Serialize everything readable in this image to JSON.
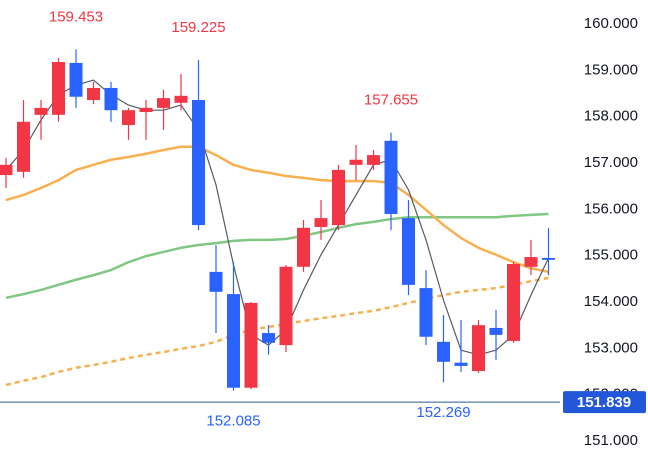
{
  "chart_data": {
    "type": "candlestick",
    "up_color": "#f23645",
    "down_color": "#2962ff",
    "open": [
      156.74,
      156.81,
      158.04,
      158.04,
      159.16,
      158.36,
      158.62,
      157.82,
      158.1,
      158.19,
      158.3,
      158.36,
      154.65,
      154.17,
      152.15,
      153.33,
      153.07,
      154.76,
      155.62,
      155.66,
      156.96,
      156.96,
      157.48,
      155.81,
      154.3,
      153.14,
      152.69,
      152.51,
      153.44,
      153.16,
      154.76,
      154.95
    ],
    "high": [
      157.11,
      158.36,
      158.36,
      159.27,
      159.453,
      158.75,
      158.75,
      158.19,
      158.36,
      158.58,
      158.92,
      159.225,
      155.23,
      154.86,
      154.0,
      153.5,
      154.8,
      155.77,
      156.2,
      156.96,
      157.39,
      157.28,
      157.655,
      156.2,
      154.69,
      153.72,
      153.61,
      153.61,
      153.83,
      154.86,
      155.34,
      155.6
    ],
    "low": [
      156.46,
      156.68,
      157.5,
      157.89,
      158.19,
      158.27,
      157.89,
      157.5,
      157.5,
      157.71,
      158.14,
      155.55,
      153.33,
      152.085,
      152.12,
      152.86,
      152.92,
      154.65,
      155.34,
      155.55,
      156.63,
      156.85,
      155.55,
      154.15,
      153.07,
      152.269,
      152.49,
      152.47,
      152.75,
      153.12,
      154.58,
      154.58
    ],
    "close": [
      156.96,
      157.89,
      158.19,
      159.18,
      158.43,
      158.62,
      158.14,
      158.14,
      158.19,
      158.4,
      158.45,
      155.66,
      154.22,
      152.15,
      153.98,
      153.12,
      154.76,
      155.6,
      155.81,
      156.85,
      157.07,
      157.17,
      155.9,
      154.37,
      153.25,
      152.71,
      152.62,
      153.5,
      153.29,
      154.82,
      154.97,
      154.91
    ],
    "high_labels": [
      4,
      11,
      22
    ],
    "low_labels": [
      13,
      25
    ],
    "high_label_color": "#f23645",
    "low_label_color": "#2962ff",
    "lines": [
      {
        "color": "#f7b04f",
        "dashed": true,
        "width": 2.5,
        "values": [
          152.21,
          152.3,
          152.38,
          152.49,
          152.58,
          152.64,
          152.71,
          152.79,
          152.86,
          152.92,
          152.99,
          153.05,
          153.14,
          153.29,
          153.4,
          153.46,
          153.53,
          153.59,
          153.65,
          153.7,
          153.76,
          153.81,
          153.89,
          153.98,
          154.07,
          154.15,
          154.22,
          154.26,
          154.3,
          154.37,
          154.45,
          154.52
        ]
      },
      {
        "color": "#81c784",
        "dashed": false,
        "width": 2.5,
        "values": [
          154.09,
          154.17,
          154.26,
          154.37,
          154.48,
          154.58,
          154.69,
          154.86,
          154.99,
          155.08,
          155.17,
          155.23,
          155.27,
          155.32,
          155.34,
          155.34,
          155.36,
          155.43,
          155.51,
          155.6,
          155.68,
          155.73,
          155.79,
          155.83,
          155.83,
          155.83,
          155.83,
          155.83,
          155.83,
          155.86,
          155.88,
          155.9
        ]
      },
      {
        "color": "#f7b04f",
        "dashed": false,
        "width": 2.5,
        "values": [
          156.2,
          156.31,
          156.46,
          156.63,
          156.85,
          156.96,
          157.07,
          157.13,
          157.2,
          157.28,
          157.35,
          157.35,
          157.17,
          156.96,
          156.85,
          156.79,
          156.72,
          156.68,
          156.63,
          156.61,
          156.61,
          156.61,
          156.57,
          156.31,
          155.99,
          155.66,
          155.38,
          155.17,
          155.02,
          154.86,
          154.73,
          154.65
        ]
      },
      {
        "color": "#555a64",
        "dashed": false,
        "width": 1.2,
        "values": [
          156.85,
          157.28,
          157.93,
          158.47,
          158.68,
          158.79,
          158.47,
          158.25,
          158.14,
          158.14,
          158.25,
          157.71,
          156.53,
          154.8,
          153.29,
          153.07,
          153.4,
          154.26,
          155.02,
          155.66,
          156.31,
          156.96,
          157.07,
          156.42,
          155.34,
          154.04,
          152.96,
          152.86,
          152.96,
          153.29,
          154.15,
          154.95
        ]
      }
    ],
    "last_price": 151.839,
    "last_price_color": "#2157d8",
    "last_line_color": "#2a5a8c",
    "ylim": [
      150.784,
      160.518
    ],
    "yticks": [
      {
        "value": 151,
        "label": "151.000"
      },
      {
        "value": 152,
        "label": "152.000"
      },
      {
        "value": 153,
        "label": "153.000"
      },
      {
        "value": 154,
        "label": "154.000"
      },
      {
        "value": 155,
        "label": "155.000"
      },
      {
        "value": 156,
        "label": "156.000"
      },
      {
        "value": 157,
        "label": "157.000"
      },
      {
        "value": 158,
        "label": "158.000"
      },
      {
        "value": 159,
        "label": "159.000"
      },
      {
        "value": 160,
        "label": "160.000"
      }
    ]
  }
}
